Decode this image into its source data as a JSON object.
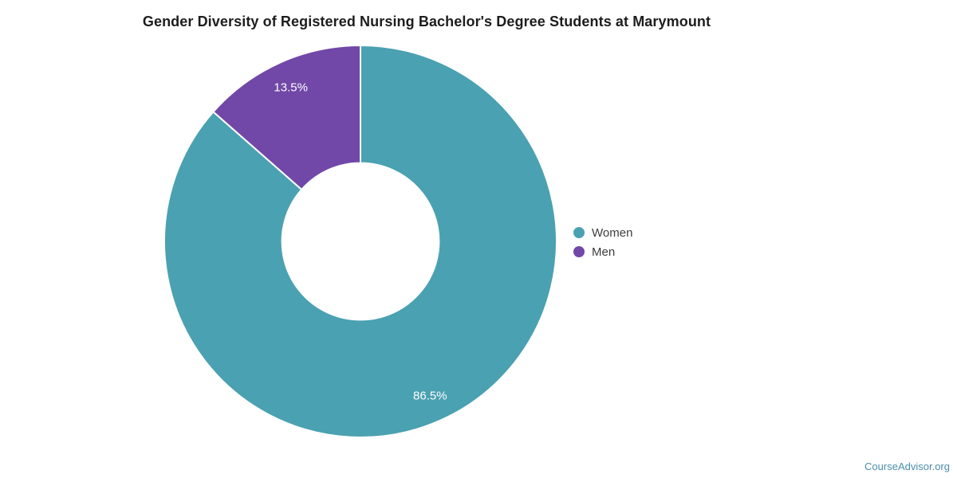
{
  "page": {
    "background": "#ffffff",
    "attribution": "CourseAdvisor.org",
    "attribution_color": "#4A8FAE",
    "title_color": "#1d1d1d"
  },
  "chart_data": {
    "type": "pie",
    "subtype": "donut",
    "title": "Gender Diversity of Registered Nursing Bachelor's Degree Students at Marymount",
    "categories": [
      "Women",
      "Men"
    ],
    "values": [
      86.5,
      13.5
    ],
    "slice_labels": [
      "86.5%",
      "13.5%"
    ],
    "colors": [
      "#4AA1B1",
      "#7148A8"
    ],
    "slice_label_color": "#ffffff",
    "slice_border_color": "#ffffff",
    "start_angle_deg": 0,
    "direction": "clockwise",
    "inner_radius_ratio": 0.4,
    "legend_position": "right",
    "legend_text_color": "#3c3c3c"
  },
  "legend": {
    "items": [
      {
        "label": "Women",
        "color": "#4AA1B1"
      },
      {
        "label": "Men",
        "color": "#7148A8"
      }
    ]
  }
}
